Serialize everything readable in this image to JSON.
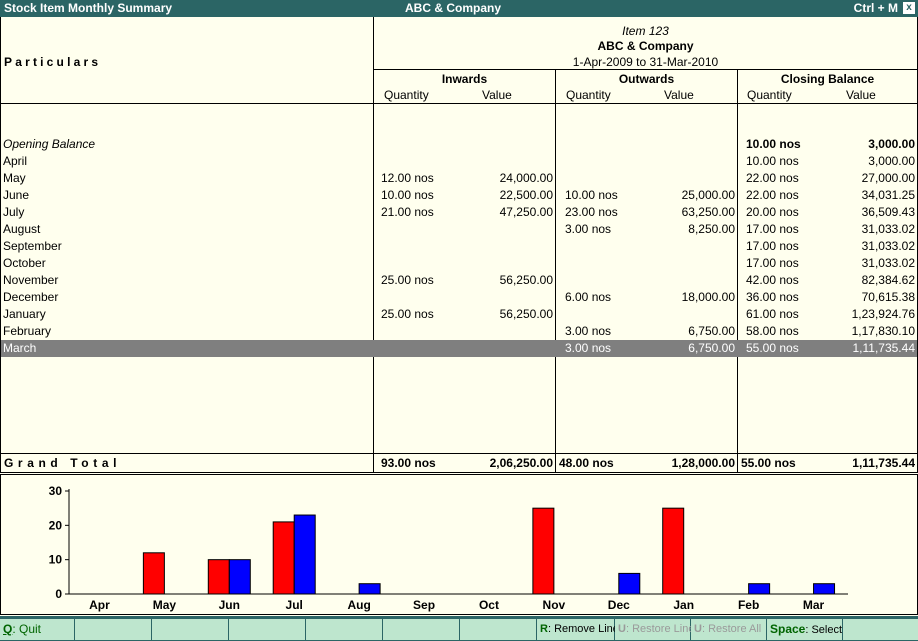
{
  "window": {
    "title": "Stock Item Monthly Summary",
    "company": "ABC & Company",
    "shortcut": "Ctrl + M",
    "close": "x"
  },
  "header": {
    "particulars": "Particulars",
    "item_name": "Item 123",
    "company": "ABC & Company",
    "period": "1-Apr-2009 to 31-Mar-2010",
    "groups": [
      "Inwards",
      "Outwards",
      "Closing Balance"
    ],
    "sub_quantity": "Quantity",
    "sub_value": "Value"
  },
  "rows": [
    {
      "label": "Opening Balance",
      "in_qty": "",
      "in_val": "",
      "out_qty": "",
      "out_val": "",
      "cl_qty": "10.00 nos",
      "cl_val": "3,000.00",
      "style": "opening"
    },
    {
      "label": "April",
      "in_qty": "",
      "in_val": "",
      "out_qty": "",
      "out_val": "",
      "cl_qty": "10.00 nos",
      "cl_val": "3,000.00"
    },
    {
      "label": "May",
      "in_qty": "12.00 nos",
      "in_val": "24,000.00",
      "out_qty": "",
      "out_val": "",
      "cl_qty": "22.00 nos",
      "cl_val": "27,000.00"
    },
    {
      "label": "June",
      "in_qty": "10.00 nos",
      "in_val": "22,500.00",
      "out_qty": "10.00 nos",
      "out_val": "25,000.00",
      "cl_qty": "22.00 nos",
      "cl_val": "34,031.25"
    },
    {
      "label": "July",
      "in_qty": "21.00 nos",
      "in_val": "47,250.00",
      "out_qty": "23.00 nos",
      "out_val": "63,250.00",
      "cl_qty": "20.00 nos",
      "cl_val": "36,509.43"
    },
    {
      "label": "August",
      "in_qty": "",
      "in_val": "",
      "out_qty": "3.00 nos",
      "out_val": "8,250.00",
      "cl_qty": "17.00 nos",
      "cl_val": "31,033.02"
    },
    {
      "label": "September",
      "in_qty": "",
      "in_val": "",
      "out_qty": "",
      "out_val": "",
      "cl_qty": "17.00 nos",
      "cl_val": "31,033.02"
    },
    {
      "label": "October",
      "in_qty": "",
      "in_val": "",
      "out_qty": "",
      "out_val": "",
      "cl_qty": "17.00 nos",
      "cl_val": "31,033.02"
    },
    {
      "label": "November",
      "in_qty": "25.00 nos",
      "in_val": "56,250.00",
      "out_qty": "",
      "out_val": "",
      "cl_qty": "42.00 nos",
      "cl_val": "82,384.62"
    },
    {
      "label": "December",
      "in_qty": "",
      "in_val": "",
      "out_qty": "6.00 nos",
      "out_val": "18,000.00",
      "cl_qty": "36.00 nos",
      "cl_val": "70,615.38"
    },
    {
      "label": "January",
      "in_qty": "25.00 nos",
      "in_val": "56,250.00",
      "out_qty": "",
      "out_val": "",
      "cl_qty": "61.00 nos",
      "cl_val": "1,23,924.76"
    },
    {
      "label": "February",
      "in_qty": "",
      "in_val": "",
      "out_qty": "3.00 nos",
      "out_val": "6,750.00",
      "cl_qty": "58.00 nos",
      "cl_val": "1,17,830.10"
    },
    {
      "label": "March",
      "in_qty": "",
      "in_val": "",
      "out_qty": "3.00 nos",
      "out_val": "6,750.00",
      "cl_qty": "55.00 nos",
      "cl_val": "1,11,735.44",
      "style": "selected"
    }
  ],
  "grand_total": {
    "label": "Grand Total",
    "in_qty": "93.00 nos",
    "in_val": "2,06,250.00",
    "out_qty": "48.00 nos",
    "out_val": "1,28,000.00",
    "cl_qty": "55.00 nos",
    "cl_val": "1,11,735.44"
  },
  "chart_data": {
    "type": "bar",
    "categories": [
      "Apr",
      "May",
      "Jun",
      "Jul",
      "Aug",
      "Sep",
      "Oct",
      "Nov",
      "Dec",
      "Jan",
      "Feb",
      "Mar"
    ],
    "series": [
      {
        "values": [
          0,
          12,
          10,
          21,
          0,
          0,
          0,
          25,
          0,
          25,
          0,
          0
        ],
        "color": "#FF0000"
      },
      {
        "values": [
          0,
          0,
          10,
          23,
          3,
          0,
          0,
          0,
          6,
          0,
          3,
          3
        ],
        "color": "#0000FF"
      }
    ],
    "ylim": [
      0,
      30
    ],
    "yticks": [
      0,
      10,
      20,
      30
    ]
  },
  "statusbar": {
    "quit_key": "Q",
    "quit_label": ": Quit",
    "remove_key": "R",
    "remove_label": ": Remove Line",
    "restore_key": "U",
    "restore_label": ": Restore Line",
    "restore_all_key": "U",
    "restore_all_label": ": Restore All",
    "space_key": "Space",
    "space_label": ": Select"
  }
}
